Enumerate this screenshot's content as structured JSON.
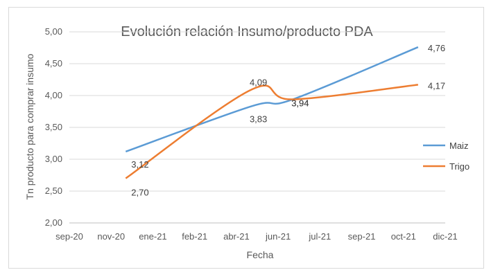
{
  "chart_data": {
    "type": "line",
    "title": "Evolución relación Insumo/producto PDA",
    "xlabel": "Fecha",
    "ylabel": "Tn producto para comprar insumo",
    "x_ticks": [
      "sep-20",
      "nov-20",
      "ene-21",
      "feb-21",
      "abr-21",
      "jun-21",
      "jul-21",
      "sep-21",
      "oct-21",
      "dic-21"
    ],
    "y_ticks": [
      "2,00",
      "2,50",
      "3,00",
      "3,50",
      "4,00",
      "4,50",
      "5,00"
    ],
    "ylim": [
      2.0,
      5.0
    ],
    "grid": true,
    "legend_position": "right",
    "series": [
      {
        "name": "Maiz",
        "color": "#5b9bd5",
        "x": [
          "nov-20",
          "abr-21",
          "jun-21",
          "oct-21"
        ],
        "values": [
          3.12,
          3.83,
          3.94,
          4.76
        ],
        "labels": [
          "3,12",
          "3,83",
          "3,94",
          "4,76"
        ]
      },
      {
        "name": "Trigo",
        "color": "#ed7d31",
        "x": [
          "nov-20",
          "abr-21",
          "jun-21",
          "oct-21"
        ],
        "values": [
          2.7,
          4.09,
          3.94,
          4.17
        ],
        "labels": [
          "2,70",
          "4,09",
          "3,94",
          "4,17"
        ]
      }
    ]
  }
}
